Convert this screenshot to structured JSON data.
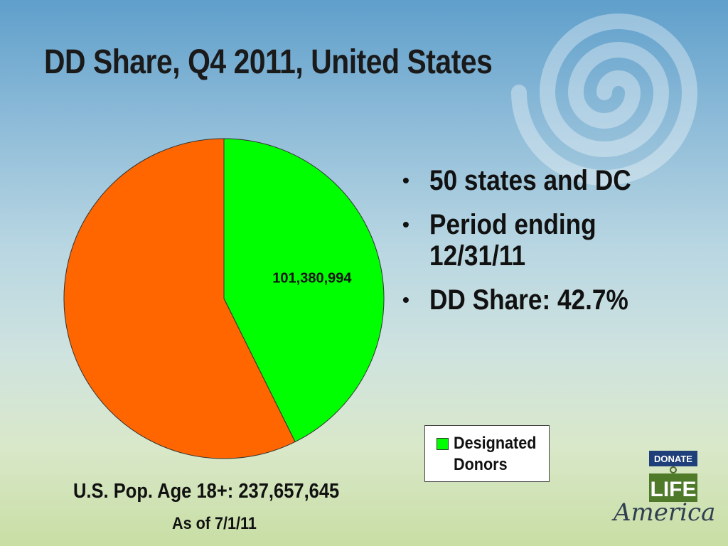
{
  "slide": {
    "title": "DD Share, Q4 2011, United States",
    "bullets": [
      "50 states and DC",
      "Period ending 12/31/11",
      "DD Share: 42.7%"
    ],
    "population_label": "U.S. Pop. Age 18+: 237,657,645",
    "as_of_label": "As of 7/1/11"
  },
  "chart_data": {
    "type": "pie",
    "title": "",
    "total": 237657645,
    "slices": [
      {
        "name": "Designated Donors",
        "value": 101380994,
        "label": "101,380,994",
        "color": "#00ff00"
      },
      {
        "name": "",
        "value": 136276651,
        "label": "",
        "color": "#ff6600"
      }
    ],
    "legend": {
      "position": "bottom-right",
      "entries": [
        {
          "label": "Designated Donors",
          "color": "#00ff00"
        }
      ]
    }
  },
  "logo": {
    "line1": "DONATE",
    "line2": "LIFE",
    "line3": "America",
    "icon": "donate-life-logo"
  },
  "colors": {
    "title_text": "#1a1a1a",
    "pie_outline": "#333333"
  }
}
